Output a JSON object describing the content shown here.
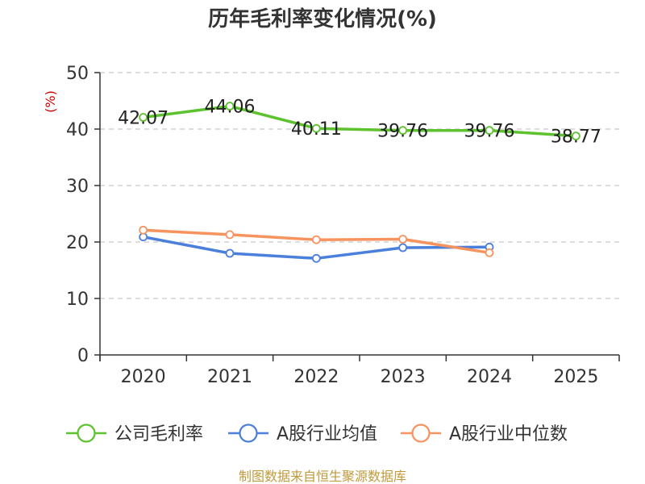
{
  "chart_data": {
    "type": "line",
    "title": "历年毛利率变化情况(%)",
    "ylabel": "(%)",
    "xlabel": "",
    "categories": [
      "2020",
      "2021",
      "2022",
      "2023",
      "2024",
      "2025"
    ],
    "ylim": [
      0,
      50
    ],
    "yticks": [
      0,
      10,
      20,
      30,
      40,
      50
    ],
    "grid": true,
    "legend_position": "bottom",
    "series": [
      {
        "name": "公司毛利率",
        "color": "#5cc22e",
        "values": [
          42.07,
          44.06,
          40.11,
          39.76,
          39.76,
          38.77
        ],
        "labels": [
          "42.07",
          "44.06",
          "40.11",
          "39.76",
          "39.76",
          "38.77"
        ]
      },
      {
        "name": "A股行业均值",
        "color": "#4a7fdb",
        "values": [
          20.9,
          18.0,
          17.1,
          19.0,
          19.1,
          null
        ],
        "labels": []
      },
      {
        "name": "A股行业中位数",
        "color": "#f7935e",
        "values": [
          22.1,
          21.3,
          20.4,
          20.5,
          18.1,
          null
        ],
        "labels": []
      }
    ]
  },
  "source": "制图数据来自恒生聚源数据库"
}
